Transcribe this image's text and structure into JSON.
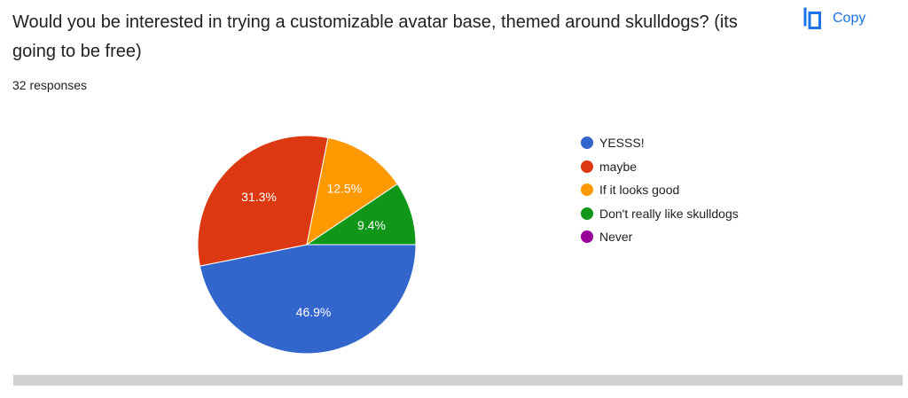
{
  "question": {
    "text": "Would you be interested in trying a customizable avatar base, themed around skulldogs? (its going to be free)",
    "responses": "32 responses"
  },
  "copy_button": {
    "label": "Copy",
    "icon": "copy-icon"
  },
  "colors": {
    "accent": "#1a73e8",
    "bottom_bar": "#d0d0d0"
  },
  "chart_data": {
    "type": "pie",
    "start_angle_deg": 0,
    "direction": "counterclockwise",
    "slices": [
      {
        "label": "YESSS!",
        "percent": 46.9,
        "count": 15,
        "color": "#3366cc",
        "data_label": "46.9%"
      },
      {
        "label": "maybe",
        "percent": 31.3,
        "count": 10,
        "color": "#dc3912",
        "data_label": "31.3%"
      },
      {
        "label": "If it looks good",
        "percent": 12.5,
        "count": 4,
        "color": "#ff9900",
        "data_label": "12.5%"
      },
      {
        "label": "Don't really like skulldogs",
        "percent": 9.4,
        "count": 3,
        "color": "#109618",
        "data_label": "9.4%"
      },
      {
        "label": "Never",
        "percent": 0,
        "count": 0,
        "color": "#990099",
        "data_label": ""
      }
    ],
    "legend_position": "right"
  }
}
